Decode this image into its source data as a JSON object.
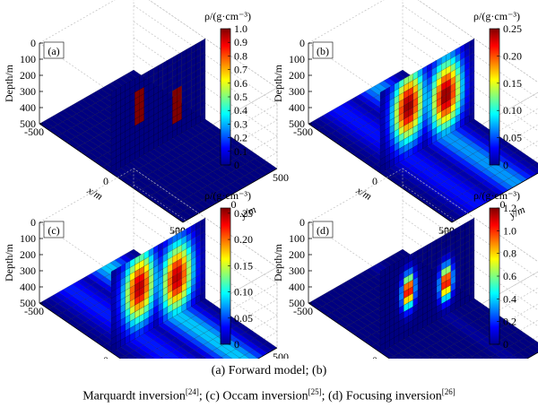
{
  "chart_data": [
    {
      "type": "heatmap",
      "panel_label": "(a)",
      "xlabel": "x/m",
      "ylabel": "y/m",
      "zlabel": "Depth/m",
      "x_ticks": [
        "-500",
        "0",
        "500"
      ],
      "y_ticks": [
        "-500",
        "0",
        "500"
      ],
      "z_ticks": [
        "0",
        "100",
        "200",
        "300",
        "400",
        "500"
      ],
      "colorbar_title": "ρ/(g·cm⁻³)",
      "colorbar_ticks": [
        "0",
        "0.1",
        "0.2",
        "0.3",
        "0.4",
        "0.5",
        "0.6",
        "0.7",
        "0.8",
        "0.9",
        "1.0"
      ],
      "colorbar_range": [
        0,
        1.0
      ],
      "grid": true,
      "bodies": [
        {
          "y_range": [
            -250,
            -150
          ],
          "depth_range": [
            100,
            300
          ],
          "value": 1.0
        },
        {
          "y_range": [
            150,
            250
          ],
          "depth_range": [
            200,
            400
          ],
          "value": 1.0
        }
      ]
    },
    {
      "type": "heatmap",
      "panel_label": "(b)",
      "xlabel": "x/m",
      "ylabel": "y/m",
      "zlabel": "Depth/m",
      "x_ticks": [
        "-500",
        "0",
        "500"
      ],
      "y_ticks": [
        "-500",
        "0",
        "500"
      ],
      "z_ticks": [
        "0",
        "100",
        "200",
        "300",
        "400",
        "500"
      ],
      "colorbar_title": "ρ/(g·cm⁻³)",
      "colorbar_ticks": [
        "0",
        "0.05",
        "0.10",
        "0.15",
        "0.20",
        "0.25"
      ],
      "colorbar_range": [
        0,
        0.25
      ],
      "grid": true,
      "bodies": [
        {
          "y_center": -200,
          "depth_center": 190,
          "y_sigma": 115,
          "depth_sigma": 150,
          "peak": 0.25
        },
        {
          "y_center": 200,
          "depth_center": 250,
          "y_sigma": 115,
          "depth_sigma": 150,
          "peak": 0.25
        }
      ]
    },
    {
      "type": "heatmap",
      "panel_label": "(c)",
      "xlabel": "x/m",
      "ylabel": "y/m",
      "zlabel": "Depth/m",
      "x_ticks": [
        "-500",
        "0",
        "500"
      ],
      "y_ticks": [
        "-500",
        "0",
        "500"
      ],
      "z_ticks": [
        "0",
        "100",
        "200",
        "300",
        "400",
        "500"
      ],
      "colorbar_title": "ρ/(g·cm⁻³)",
      "colorbar_ticks": [
        "0",
        "0.05",
        "0.10",
        "0.15",
        "0.20",
        "0.25"
      ],
      "colorbar_range": [
        0,
        0.26
      ],
      "grid": true,
      "bodies": [
        {
          "y_center": -200,
          "depth_center": 200,
          "y_sigma": 115,
          "depth_sigma": 150,
          "peak": 0.25
        },
        {
          "y_center": 200,
          "depth_center": 270,
          "y_sigma": 115,
          "depth_sigma": 150,
          "peak": 0.25
        }
      ]
    },
    {
      "type": "heatmap",
      "panel_label": "(d)",
      "xlabel": "x/m",
      "ylabel": "y/m",
      "zlabel": "Depth/m",
      "x_ticks": [
        "-500",
        "0",
        "500"
      ],
      "y_ticks": [
        "-500",
        "0",
        "500"
      ],
      "z_ticks": [
        "0",
        "100",
        "200",
        "300",
        "400",
        "500"
      ],
      "colorbar_title": "ρ/(g·cm⁻³)",
      "colorbar_ticks": [
        "0",
        "0.2",
        "0.4",
        "0.6",
        "0.8",
        "1.0",
        "1.2"
      ],
      "colorbar_range": [
        0,
        1.2
      ],
      "grid": true,
      "bodies": [
        {
          "y_center": -200,
          "depth_center": 220,
          "y_sigma": 45,
          "depth_sigma": 70,
          "peak": 1.2
        },
        {
          "y_center": 200,
          "depth_center": 300,
          "y_sigma": 45,
          "depth_sigma": 70,
          "peak": 1.2
        }
      ]
    }
  ],
  "caption": {
    "line1": "(a)  Forward  model;  (b)",
    "line2_a": "Marquardt inversion",
    "ref1": "[24]",
    "line2_b": "; (c) Occam inversion",
    "ref2": "[25]",
    "line2_c": "; (d) Focusing inversion",
    "ref3": "[26]"
  }
}
